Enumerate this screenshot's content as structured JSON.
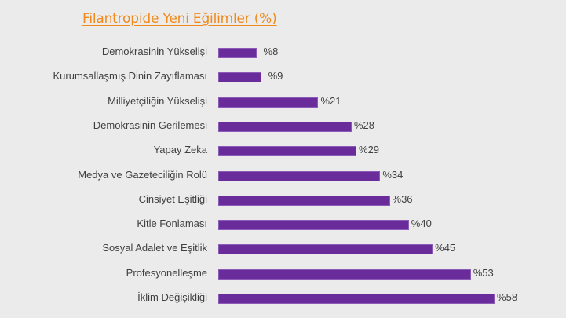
{
  "title": "Filantropide Yeni Eğilimler (%)",
  "colors": {
    "title": "#f08a1c",
    "bar": "#6a2b9b",
    "background": "#ebebeb",
    "text": "#404040"
  },
  "chart_data": {
    "type": "bar",
    "orientation": "horizontal",
    "title": "Filantropide Yeni Eğilimler (%)",
    "xlabel": "",
    "ylabel": "",
    "grid": false,
    "legend": null,
    "categories": [
      "Demokrasinin Yükselişi",
      "Kurumsallaşmış Dinin Zayıflaması",
      "Milliyetçiliğin Yükselişi",
      "Demokrasinin Gerilemesi",
      "Yapay Zeka",
      "Medya ve Gazeteciliğin Rolü",
      "Cinsiyet Eşitliği",
      "Kitle Fonlaması",
      "Sosyal Adalet ve Eşitlik",
      "Profesyonelleşme",
      "İklim Değişikliği"
    ],
    "values": [
      8,
      9,
      21,
      28,
      29,
      34,
      36,
      40,
      45,
      53,
      58
    ],
    "value_labels": [
      "%8",
      "%9",
      "%21",
      "%28",
      "%29",
      "%34",
      "%36",
      "%40",
      "%45",
      "%53",
      "%58"
    ]
  }
}
